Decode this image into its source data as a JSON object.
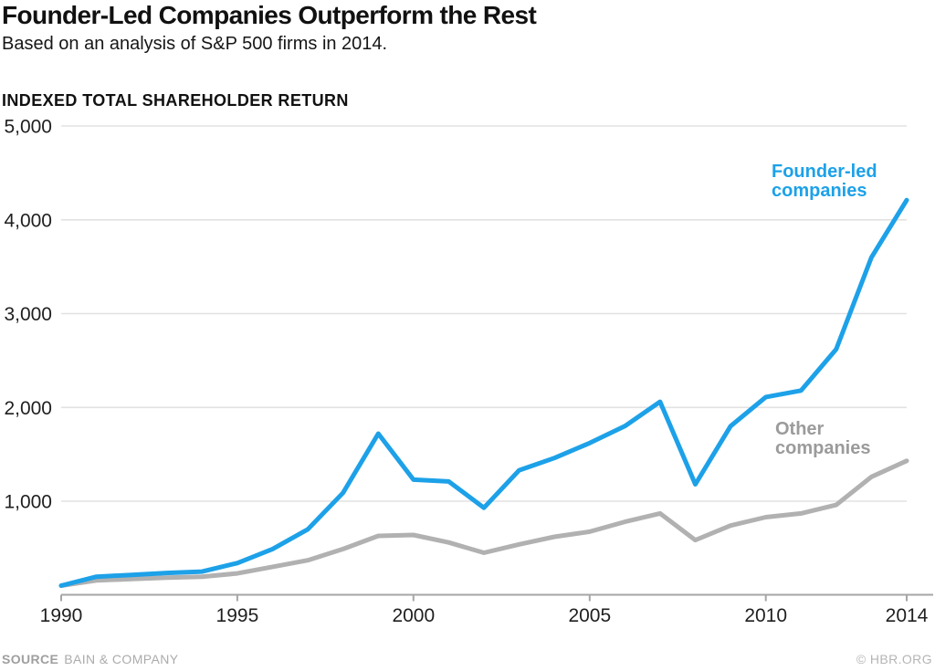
{
  "header": {
    "title": "Founder-Led Companies Outperform the Rest",
    "subtitle": "Based on an analysis of S&P 500 firms in 2014."
  },
  "chart_data": {
    "type": "line",
    "title": "Founder-Led Companies Outperform the Rest",
    "subtitle": "Based on an analysis of S&P 500 firms in 2014.",
    "ylabel": "INDEXED TOTAL SHAREHOLDER RETURN",
    "xlabel": "",
    "grid": "horizontal",
    "legend_position": "inline-annotations",
    "xlim": [
      1990,
      2014
    ],
    "ylim": [
      0,
      5000
    ],
    "xticks": [
      1990,
      1995,
      2000,
      2005,
      2010,
      2014
    ],
    "xtick_labels": [
      "1990",
      "1995",
      "2000",
      "2005",
      "2010",
      "2014"
    ],
    "yticks": [
      1000,
      2000,
      3000,
      4000,
      5000
    ],
    "ytick_labels": [
      "1,000",
      "2,000",
      "3,000",
      "4,000",
      "5,000"
    ],
    "x": [
      1990,
      1991,
      1992,
      1993,
      1994,
      1995,
      1996,
      1997,
      1998,
      1999,
      2000,
      2001,
      2002,
      2003,
      2004,
      2005,
      2006,
      2007,
      2008,
      2009,
      2010,
      2011,
      2012,
      2013,
      2014
    ],
    "series": [
      {
        "name": "Founder-led companies",
        "label_lines": [
          "Founder-led",
          "companies"
        ],
        "color": "#1da1e8",
        "label_color": "#1da1e8",
        "values": [
          100,
          195,
          215,
          235,
          250,
          340,
          490,
          700,
          1090,
          1720,
          1230,
          1210,
          930,
          1330,
          1460,
          1620,
          1800,
          2060,
          1180,
          1800,
          2110,
          2180,
          2620,
          3600,
          4210
        ]
      },
      {
        "name": "Other companies",
        "label_lines": [
          "Other",
          "companies"
        ],
        "color": "#b1b1b1",
        "label_color": "#9b9b9b",
        "values": [
          100,
          155,
          170,
          185,
          195,
          230,
          300,
          370,
          490,
          630,
          640,
          560,
          450,
          540,
          620,
          675,
          780,
          870,
          585,
          740,
          830,
          870,
          960,
          1260,
          1430
        ]
      }
    ],
    "axis_colors": {
      "gridline": "#e2e2e2",
      "axis": "#a6a6a6",
      "tick_text": "#1f1f1f"
    }
  },
  "footer": {
    "source_label": "SOURCE",
    "source_value": "BAIN & COMPANY",
    "credit": "© HBR.ORG"
  }
}
